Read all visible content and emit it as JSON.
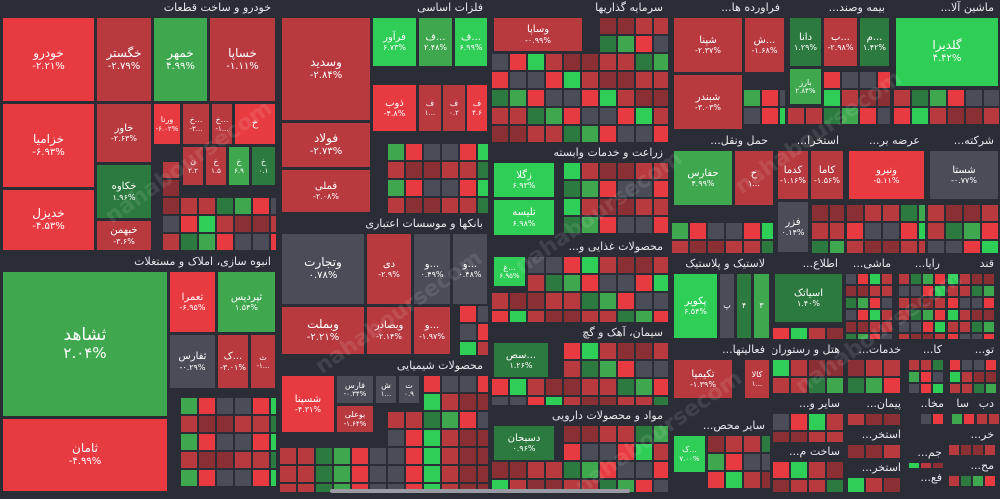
{
  "colors": {
    "strong_up": "#2fcf57",
    "up": "#3fa84f",
    "weak_up": "#2c7a3f",
    "neutral": "#4a4d57",
    "weak_down": "#8a2f34",
    "down": "#b83a3f",
    "strong_down": "#e83b41",
    "background": "#2b2d36"
  },
  "watermark": "nahaboursecom",
  "chart_data": {
    "type": "treemap",
    "sectors": [
      {
        "id": "s-auto",
        "title": "خودرو و ساخت قطعات",
        "tiles": [
          {
            "name": "خودرو",
            "change": "-۲.۲۱%",
            "tone": "strong_down"
          },
          {
            "name": "خگستر",
            "change": "-۲.۷۹%",
            "tone": "down"
          },
          {
            "name": "خمهر",
            "change": "۴.۹۹%",
            "tone": "up"
          },
          {
            "name": "خساپا",
            "change": "-۱.۱۱%",
            "tone": "down"
          },
          {
            "name": "خزامیا",
            "change": "-۶.۹۳%",
            "tone": "strong_down"
          },
          {
            "name": "خاور",
            "change": "-۲.۶۳%",
            "tone": "down"
          },
          {
            "name": "ورنا",
            "change": "-۶.۰۲%",
            "tone": "strong_down"
          },
          {
            "name": "خ...",
            "change": "-۳...",
            "tone": "down"
          },
          {
            "name": "خ...",
            "change": "-۱...",
            "tone": "down"
          },
          {
            "name": "خ",
            "change": "",
            "tone": "strong_down"
          },
          {
            "name": "خکاوه",
            "change": "۱.۹۶%",
            "tone": "weak_up"
          },
          {
            "name": "خدیزل",
            "change": "-۴.۵۳%",
            "tone": "strong_down"
          },
          {
            "name": "خبهمن",
            "change": "-۳.۶%",
            "tone": "down"
          },
          {
            "name": "ن",
            "change": "۲.۲",
            "tone": "down"
          },
          {
            "name": "خ",
            "change": "۱.۵",
            "tone": "down"
          },
          {
            "name": "خ",
            "change": "۶.۹",
            "tone": "up"
          },
          {
            "name": "خ",
            "change": "۰.۱",
            "tone": "weak_up"
          }
        ]
      },
      {
        "id": "s-metals",
        "title": "فلزات اساسی",
        "tiles": [
          {
            "name": "وسدید",
            "change": "-۲.۸۴%",
            "tone": "down"
          },
          {
            "name": "فرآور",
            "change": "۶.۷۳%",
            "tone": "strong_up"
          },
          {
            "name": "ف...",
            "change": "۲.۴۸%",
            "tone": "up"
          },
          {
            "name": "ف...",
            "change": "۶.۹۹%",
            "tone": "strong_up"
          },
          {
            "name": "فولاد",
            "change": "-۲.۷۳%",
            "tone": "down"
          },
          {
            "name": "ذوب",
            "change": "-۴.۸%",
            "tone": "strong_down"
          },
          {
            "name": "ف",
            "change": "۱...",
            "tone": "down"
          },
          {
            "name": "ف",
            "change": "۰.۲",
            "tone": "down"
          },
          {
            "name": "ف",
            "change": "۴.۶",
            "tone": "strong_down"
          },
          {
            "name": "فملی",
            "change": "-۲.۰۸%",
            "tone": "down"
          }
        ]
      },
      {
        "id": "s-invest",
        "title": "سرمایه گذاریها",
        "tiles": [
          {
            "name": "وساپا",
            "change": "-۰.۹۹%",
            "tone": "down"
          }
        ]
      },
      {
        "id": "s-refinery",
        "title": "فراورده ها...",
        "tiles": [
          {
            "name": "شپنا",
            "change": "-۲.۳۷%",
            "tone": "down"
          },
          {
            "name": "ش...",
            "change": "-۱.۶۸%",
            "tone": "down"
          },
          {
            "name": "شبندر",
            "change": "-۳.۰۳%",
            "tone": "down"
          }
        ]
      },
      {
        "id": "s-insurance",
        "title": "بیمه وصند...",
        "tiles": [
          {
            "name": "دانا",
            "change": "۱.۲۹%",
            "tone": "weak_up"
          },
          {
            "name": "ب...",
            "change": "-۲.۹۸%",
            "tone": "down"
          },
          {
            "name": "م...",
            "change": "۱.۴۲%",
            "tone": "weak_up"
          },
          {
            "name": "بارز",
            "change": "۲.۸۴%",
            "tone": "up"
          }
        ]
      },
      {
        "id": "s-machinery",
        "title": "ماشین آلا...",
        "tiles": [
          {
            "name": "گلدیرا",
            "change": "۴.۴۲%",
            "tone": "strong_up"
          }
        ]
      },
      {
        "id": "s-agri",
        "title": "زراعت و خدمات وابسته",
        "tiles": [
          {
            "name": "زگلا",
            "change": "۶.۹۳%",
            "tone": "strong_up"
          },
          {
            "name": "تلیسه",
            "change": "۶.۹۸%",
            "tone": "strong_up"
          }
        ]
      },
      {
        "id": "s-transport",
        "title": "حمل ونقل...",
        "tiles": [
          {
            "name": "حفارس",
            "change": "۴.۹۹%",
            "tone": "up"
          },
          {
            "name": "ح",
            "change": "۱...",
            "tone": "down"
          }
        ]
      },
      {
        "id": "s-extract",
        "title": "استخرا...",
        "tiles": [
          {
            "name": "کدما",
            "change": "-۱.۱۶%",
            "tone": "down"
          },
          {
            "name": "کاما",
            "change": "-۱.۵۶%",
            "tone": "down"
          },
          {
            "name": "فزر",
            "change": "۰.۱۴%",
            "tone": "neutral"
          }
        ]
      },
      {
        "id": "s-supply",
        "title": "عرضه بر...",
        "tiles": [
          {
            "name": "ونیرو",
            "change": "-۵.۱۱%",
            "tone": "strong_down"
          }
        ]
      },
      {
        "id": "s-companies",
        "title": "شرکته...",
        "tiles": [
          {
            "name": "شستا",
            "change": "-۰.۷۷%",
            "tone": "neutral"
          }
        ]
      },
      {
        "id": "s-banks",
        "title": "بانکها و موسسات اعتباری",
        "tiles": [
          {
            "name": "وتجارت",
            "change": "۰.۷۸%",
            "tone": "neutral"
          },
          {
            "name": "دی",
            "change": "-۲.۹%",
            "tone": "down"
          },
          {
            "name": "و...",
            "change": "۰.۴۹%",
            "tone": "neutral"
          },
          {
            "name": "و...",
            "change": "۰.۴۸%",
            "tone": "neutral"
          },
          {
            "name": "وبملت",
            "change": "-۲.۲۱%",
            "tone": "down"
          },
          {
            "name": "وبصادر",
            "change": "-۲.۱۴%",
            "tone": "down"
          },
          {
            "name": "و...",
            "change": "-۱.۹۷%",
            "tone": "down"
          }
        ]
      },
      {
        "id": "s-food",
        "title": "محصولات غذایی و...",
        "tiles": [
          {
            "name": "غ...",
            "change": "۶.۹۵%",
            "tone": "strong_up"
          }
        ]
      },
      {
        "id": "s-plastic",
        "title": "لاستیک و پلاستیک",
        "tiles": [
          {
            "name": "پکویر",
            "change": "۶.۵۴%",
            "tone": "strong_up"
          },
          {
            "name": "پ",
            "change": "",
            "tone": "neutral"
          },
          {
            "name": "۴",
            "change": "",
            "tone": "weak_up"
          },
          {
            "name": "۳",
            "change": "",
            "tone": "up"
          }
        ]
      },
      {
        "id": "s-info",
        "title": "اطلاع...",
        "tiles": [
          {
            "name": "اسیاتک",
            "change": "۱.۴۰%",
            "tone": "weak_up"
          }
        ]
      },
      {
        "id": "s-misc",
        "title": "ماشی...",
        "tiles": []
      },
      {
        "id": "s-radio",
        "title": "رایا...",
        "tiles": []
      },
      {
        "id": "s-sugar",
        "title": "قند",
        "tiles": []
      },
      {
        "id": "s-mass",
        "title": "انبوه سازی، املاک و مستغلات",
        "tiles": [
          {
            "name": "ثشاهد",
            "change": "۲.۰۴%",
            "tone": "up"
          },
          {
            "name": "تعمرا",
            "change": "-۶.۹۵%",
            "tone": "strong_down"
          },
          {
            "name": "ثپردیس",
            "change": "۱.۵۴%",
            "tone": "up"
          },
          {
            "name": "ثفارس",
            "change": "-۰.۲۹%",
            "tone": "neutral"
          },
          {
            "name": "ک...",
            "change": "-۳.۰۱%",
            "tone": "down"
          },
          {
            "name": "ث",
            "change": "-۱...",
            "tone": "down"
          },
          {
            "name": "ثامان",
            "change": "-۴.۹۹%",
            "tone": "strong_down"
          }
        ]
      },
      {
        "id": "s-chemical",
        "title": "محصولات شیمیایی",
        "tiles": [
          {
            "name": "شسپنا",
            "change": "-۴.۳۱%",
            "tone": "strong_down"
          },
          {
            "name": "فارس",
            "change": "-۰.۳۴%",
            "tone": "neutral"
          },
          {
            "name": "ش",
            "change": "۱...",
            "tone": "neutral"
          },
          {
            "name": "ت",
            "change": "۰.۹",
            "tone": "neutral"
          },
          {
            "name": "بوعلی",
            "change": "-۱.۶۴%",
            "tone": "down"
          }
        ]
      },
      {
        "id": "s-cement",
        "title": "سیمان، آهک و گچ",
        "tiles": [
          {
            "name": "سص...",
            "change": "۱.۲۶%",
            "tone": "weak_up"
          }
        ]
      },
      {
        "id": "s-pharma",
        "title": "مواد و محصولات دارویی",
        "tiles": [
          {
            "name": "دسبحان",
            "change": "۰.۹۶%",
            "tone": "weak_up"
          }
        ]
      },
      {
        "id": "s-activity",
        "title": "فعالیتها...",
        "tiles": [
          {
            "name": "تکیمیا",
            "change": "-۱.۳۹%",
            "tone": "down"
          },
          {
            "name": "کالا",
            "change": "۱...",
            "tone": "down"
          }
        ]
      },
      {
        "id": "s-hotel",
        "title": "هتل و رستوران",
        "tiles": []
      },
      {
        "id": "s-services",
        "title": "خدمات...",
        "tiles": []
      },
      {
        "id": "s-ka",
        "title": "کا...",
        "tiles": []
      },
      {
        "id": "s-tu",
        "title": "تو...",
        "tiles": []
      },
      {
        "id": "s-mining",
        "title": "سایر محص...",
        "tiles": [
          {
            "name": "ک...",
            "change": "۷.۰۰%",
            "tone": "strong_up"
          }
        ]
      },
      {
        "id": "s-other",
        "title": "سایر و...",
        "tiles": []
      },
      {
        "id": "s-peyman",
        "title": "پیمان...",
        "tiles": []
      },
      {
        "id": "s-building",
        "title": "ساخت م...",
        "tiles": []
      },
      {
        "id": "s-estekhr1",
        "title": "استخر...",
        "tiles": []
      },
      {
        "id": "s-estekhr2",
        "title": "استخر...",
        "tiles": []
      },
      {
        "id": "s-ma",
        "title": "مخا...",
        "tiles": []
      },
      {
        "id": "s-sa",
        "title": "سا",
        "tiles": []
      },
      {
        "id": "s-db",
        "title": "دب",
        "tiles": []
      },
      {
        "id": "s-kh",
        "title": "خر...",
        "tiles": []
      },
      {
        "id": "s-jam",
        "title": "جم...",
        "tiles": []
      },
      {
        "id": "s-fa",
        "title": "فع...",
        "tiles": []
      },
      {
        "id": "s-me",
        "title": "مح...",
        "tiles": []
      }
    ]
  }
}
